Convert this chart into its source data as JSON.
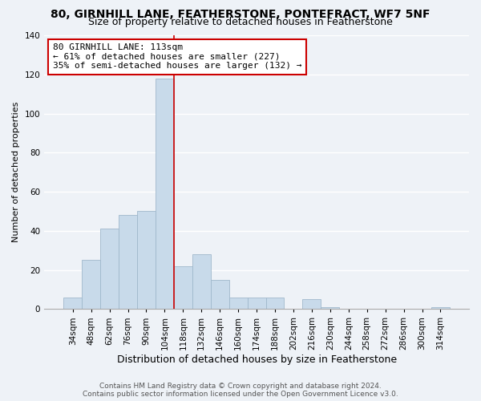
{
  "title": "80, GIRNHILL LANE, FEATHERSTONE, PONTEFRACT, WF7 5NF",
  "subtitle": "Size of property relative to detached houses in Featherstone",
  "xlabel": "Distribution of detached houses by size in Featherstone",
  "ylabel": "Number of detached properties",
  "bar_color": "#c8daea",
  "bar_edge_color": "#a0b8cc",
  "highlight_line_color": "#cc0000",
  "categories": [
    "34sqm",
    "48sqm",
    "62sqm",
    "76sqm",
    "90sqm",
    "104sqm",
    "118sqm",
    "132sqm",
    "146sqm",
    "160sqm",
    "174sqm",
    "188sqm",
    "202sqm",
    "216sqm",
    "230sqm",
    "244sqm",
    "258sqm",
    "272sqm",
    "286sqm",
    "300sqm",
    "314sqm"
  ],
  "values": [
    6,
    25,
    41,
    48,
    50,
    118,
    22,
    28,
    15,
    6,
    6,
    6,
    0,
    5,
    1,
    0,
    0,
    0,
    0,
    0,
    1
  ],
  "highlight_index": 5,
  "ylim": [
    0,
    140
  ],
  "yticks": [
    0,
    20,
    40,
    60,
    80,
    100,
    120,
    140
  ],
  "annotation_title": "80 GIRNHILL LANE: 113sqm",
  "annotation_line1": "← 61% of detached houses are smaller (227)",
  "annotation_line2": "35% of semi-detached houses are larger (132) →",
  "annotation_box_facecolor": "white",
  "annotation_box_edgecolor": "#cc0000",
  "footer_line1": "Contains HM Land Registry data © Crown copyright and database right 2024.",
  "footer_line2": "Contains public sector information licensed under the Open Government Licence v3.0.",
  "background_color": "#eef2f7",
  "grid_color": "white",
  "title_fontsize": 10,
  "subtitle_fontsize": 9,
  "annotation_fontsize": 8,
  "footer_fontsize": 6.5,
  "ylabel_fontsize": 8,
  "xlabel_fontsize": 9,
  "tick_fontsize": 7.5
}
